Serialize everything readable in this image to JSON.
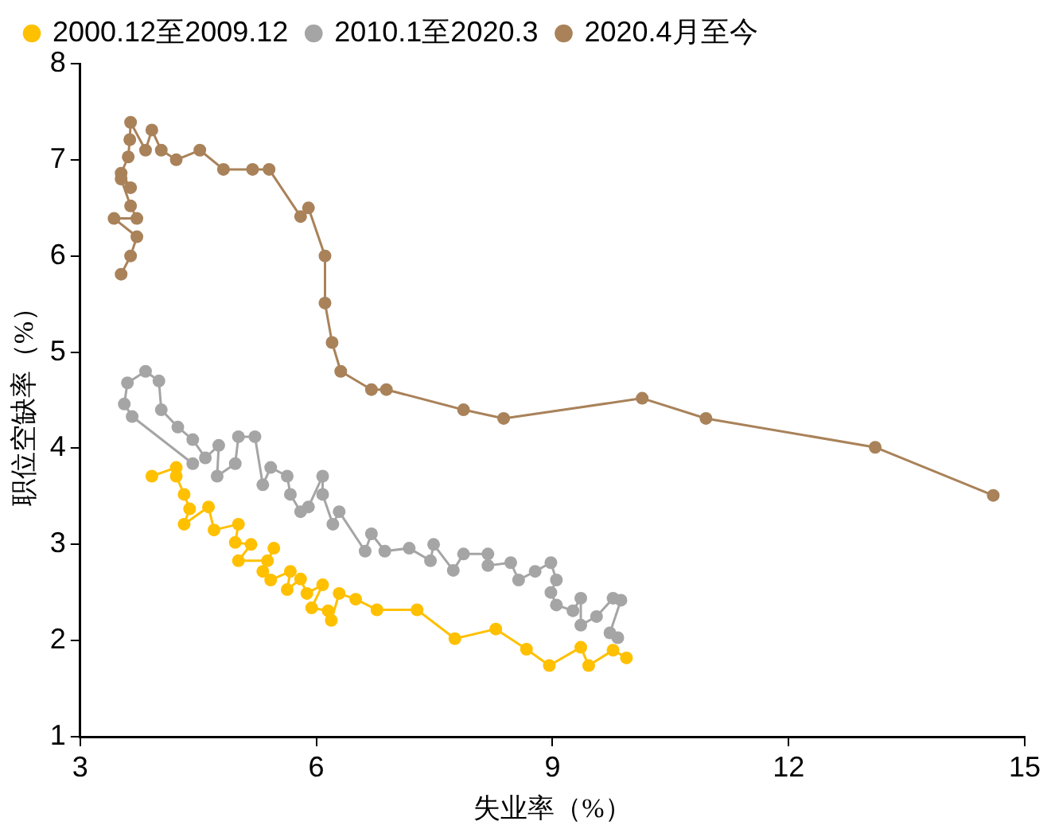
{
  "chart_data": {
    "type": "line",
    "xlabel": "失业率（%）",
    "ylabel": "职位空缺率（%）",
    "xlim": [
      3,
      15
    ],
    "xticks": [
      3,
      6,
      9,
      12,
      15
    ],
    "ylim": [
      1,
      8
    ],
    "yticks": [
      1,
      2,
      3,
      4,
      5,
      6,
      7,
      8
    ],
    "grid": false,
    "legend": "top",
    "marker": "circle",
    "line_style": "solid",
    "series": [
      {
        "name": "2000.12至2009.12",
        "color": "#ffc000",
        "x": [
          3.91,
          4.22,
          4.22,
          4.32,
          4.39,
          4.32,
          4.63,
          4.7,
          5.01,
          4.97,
          5.17,
          5.01,
          5.38,
          5.46,
          5.32,
          5.42,
          5.67,
          5.63,
          5.8,
          5.88,
          6.08,
          5.94,
          6.15,
          6.19,
          6.29,
          6.5,
          6.77,
          7.28,
          7.76,
          8.28,
          8.67,
          8.96,
          9.36,
          9.46,
          9.77,
          9.94
        ],
        "values": [
          3.71,
          3.8,
          3.71,
          3.52,
          3.37,
          3.21,
          3.39,
          3.15,
          3.21,
          3.02,
          3.0,
          2.83,
          2.83,
          2.96,
          2.72,
          2.63,
          2.72,
          2.53,
          2.64,
          2.49,
          2.58,
          2.34,
          2.31,
          2.21,
          2.49,
          2.43,
          2.32,
          2.32,
          2.02,
          2.12,
          1.91,
          1.74,
          1.93,
          1.74,
          1.9,
          1.82
        ]
      },
      {
        "name": "2010.1至2020.3",
        "color": "#a5a5a5",
        "x": [
          9.83,
          9.73,
          9.87,
          9.77,
          9.56,
          9.36,
          9.36,
          9.26,
          9.05,
          8.98,
          9.05,
          8.98,
          8.78,
          8.57,
          8.47,
          8.18,
          8.18,
          7.87,
          7.74,
          7.49,
          7.45,
          7.18,
          6.87,
          6.7,
          6.62,
          6.29,
          6.21,
          6.08,
          6.08,
          5.9,
          5.8,
          5.67,
          5.63,
          5.42,
          5.32,
          5.22,
          5.01,
          4.97,
          4.74,
          4.76,
          4.59,
          4.43,
          4.24,
          4.03,
          4.0,
          3.83,
          3.6,
          3.56,
          3.66,
          4.43
        ],
        "values": [
          2.03,
          2.08,
          2.42,
          2.44,
          2.25,
          2.16,
          2.44,
          2.31,
          2.37,
          2.5,
          2.63,
          2.81,
          2.72,
          2.63,
          2.81,
          2.78,
          2.9,
          2.9,
          2.73,
          3.0,
          2.83,
          2.96,
          2.93,
          3.11,
          2.93,
          3.34,
          3.21,
          3.52,
          3.71,
          3.39,
          3.34,
          3.52,
          3.71,
          3.8,
          3.62,
          4.12,
          4.12,
          3.84,
          3.71,
          4.03,
          3.9,
          4.09,
          4.22,
          4.4,
          4.7,
          4.8,
          4.68,
          4.46,
          4.33,
          3.84
        ]
      },
      {
        "name": "2020.4月至今",
        "color": "#a9825a",
        "x": [
          14.6,
          13.1,
          10.95,
          10.14,
          8.38,
          7.87,
          6.89,
          6.7,
          6.31,
          6.2,
          6.11,
          6.11,
          5.9,
          5.8,
          5.4,
          5.19,
          4.82,
          4.52,
          4.22,
          4.03,
          3.91,
          3.83,
          3.64,
          3.63,
          3.61,
          3.52,
          3.64,
          3.52,
          3.64,
          3.72,
          3.43,
          3.72,
          3.64,
          3.52
        ],
        "values": [
          3.51,
          4.01,
          4.31,
          4.52,
          4.31,
          4.4,
          4.61,
          4.61,
          4.8,
          5.1,
          5.51,
          6.0,
          6.5,
          6.41,
          6.9,
          6.9,
          6.9,
          7.1,
          7.0,
          7.1,
          7.31,
          7.1,
          7.39,
          7.21,
          7.03,
          6.86,
          6.71,
          6.8,
          6.52,
          6.39,
          6.39,
          6.2,
          6.0,
          5.81
        ]
      }
    ]
  }
}
